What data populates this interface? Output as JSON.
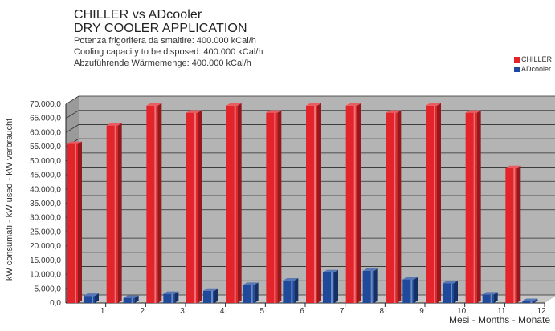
{
  "header": {
    "title_line1": "CHILLER vs ADcooler",
    "title_line2": "DRY COOLER APPLICATION",
    "subtitle_it": "Potenza frigorifera da smaltire: 400.000 kCal/h",
    "subtitle_en": "Cooling capacity to be disposed: 400.000 kCal/h",
    "subtitle_de": "Abzuführende Wärmemenge: 400.000 kCal/h"
  },
  "colors": {
    "chiller": "#e3252b",
    "adcooler": "#1f4a9c",
    "floor": "#c8c8c8",
    "wall": "#b4b4b4"
  },
  "chart_data": {
    "type": "bar",
    "style": "3d-clustered",
    "title": "CHILLER vs ADcooler",
    "subtitle": "DRY COOLER APPLICATION",
    "xlabel": "Mesi - Months - Monate",
    "ylabel": "kW consumati - kW used - kW verbraucht",
    "ylim": [
      0,
      70000
    ],
    "yticks": [
      0,
      5000,
      10000,
      15000,
      20000,
      25000,
      30000,
      35000,
      40000,
      45000,
      50000,
      55000,
      60000,
      65000,
      70000
    ],
    "ytick_labels": [
      "0,0",
      "5.000,0",
      "10.000,0",
      "15.000,0",
      "20.000,0",
      "25.000,0",
      "30.000,0",
      "35.000,0",
      "40.000,0",
      "45.000,0",
      "50.000,0",
      "55.000,0",
      "60.000,0",
      "65.000,0",
      "70.000,0"
    ],
    "categories": [
      "1",
      "2",
      "3",
      "4",
      "5",
      "6",
      "7",
      "8",
      "9",
      "10",
      "11",
      "12"
    ],
    "series": [
      {
        "name": "CHILLER",
        "color": "#e3252b",
        "values": [
          56000,
          62500,
          69500,
          67000,
          69500,
          67000,
          69500,
          69500,
          67000,
          69500,
          67000,
          47500
        ]
      },
      {
        "name": "ADcooler",
        "color": "#1f4a9c",
        "values": [
          2500,
          1800,
          3200,
          4300,
          6400,
          7900,
          10800,
          11300,
          8300,
          7000,
          3000,
          700
        ]
      }
    ],
    "legend": "top-right",
    "grid": true
  }
}
